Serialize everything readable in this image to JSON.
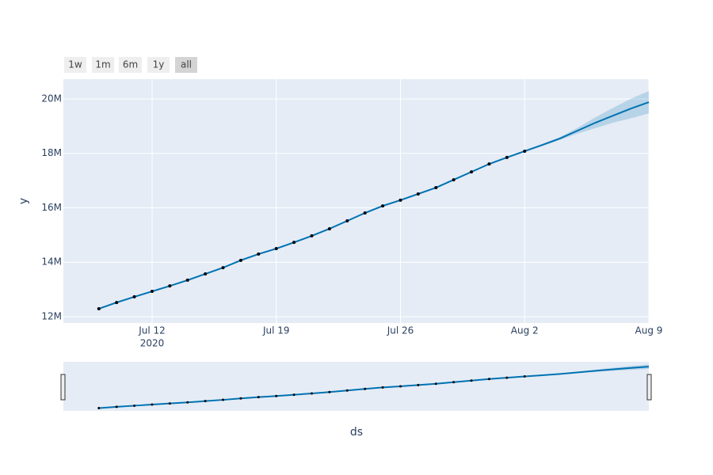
{
  "chart_data": {
    "type": "line",
    "x": [
      "2020-07-09",
      "2020-07-10",
      "2020-07-11",
      "2020-07-12",
      "2020-07-13",
      "2020-07-14",
      "2020-07-15",
      "2020-07-16",
      "2020-07-17",
      "2020-07-18",
      "2020-07-19",
      "2020-07-20",
      "2020-07-21",
      "2020-07-22",
      "2020-07-23",
      "2020-07-24",
      "2020-07-25",
      "2020-07-26",
      "2020-07-27",
      "2020-07-28",
      "2020-07-29",
      "2020-07-30",
      "2020-07-31",
      "2020-08-01",
      "2020-08-02",
      "2020-08-03",
      "2020-08-04",
      "2020-08-05",
      "2020-08-06",
      "2020-08-07",
      "2020-08-08",
      "2020-08-09"
    ],
    "values": [
      12290000,
      12520000,
      12730000,
      12930000,
      13130000,
      13340000,
      13570000,
      13800000,
      14070000,
      14300000,
      14500000,
      14730000,
      14970000,
      15230000,
      15520000,
      15810000,
      16070000,
      16280000,
      16510000,
      16740000,
      17030000,
      17320000,
      17610000,
      17850000,
      18080000,
      null,
      null,
      null,
      null,
      null,
      null,
      null
    ],
    "marker_color": "#000000",
    "forecast": {
      "color": "#0072B2",
      "band_color": "rgba(0,114,178,0.2)",
      "values": [
        12290000,
        12520000,
        12730000,
        12930000,
        13130000,
        13340000,
        13570000,
        13800000,
        14070000,
        14300000,
        14500000,
        14730000,
        14970000,
        15230000,
        15520000,
        15810000,
        16070000,
        16280000,
        16510000,
        16740000,
        17030000,
        17320000,
        17610000,
        17850000,
        18080000,
        18310000,
        18550000,
        18840000,
        19130000,
        19390000,
        19650000,
        19880000
      ],
      "upper": [
        12320000,
        12550000,
        12760000,
        12960000,
        13160000,
        13370000,
        13600000,
        13830000,
        14100000,
        14330000,
        14530000,
        14760000,
        15000000,
        15260000,
        15550000,
        15840000,
        16100000,
        16310000,
        16540000,
        16770000,
        17060000,
        17350000,
        17640000,
        17880000,
        18110000,
        18350000,
        18600000,
        18950000,
        19330000,
        19680000,
        20010000,
        20290000
      ],
      "lower": [
        12260000,
        12490000,
        12700000,
        12900000,
        13100000,
        13310000,
        13540000,
        13770000,
        14040000,
        14270000,
        14470000,
        14700000,
        14940000,
        15200000,
        15490000,
        15780000,
        16040000,
        16250000,
        16480000,
        16710000,
        17000000,
        17290000,
        17580000,
        17820000,
        18050000,
        18270000,
        18490000,
        18730000,
        18930000,
        19130000,
        19290000,
        19470000
      ]
    },
    "xlabel": "ds",
    "ylabel": "y",
    "xlim": [
      "2020-07-07",
      "2020-08-09"
    ],
    "xticks": [
      {
        "value": "2020-07-12",
        "label": "Jul 12"
      },
      {
        "value": "2020-07-19",
        "label": "Jul 19"
      },
      {
        "value": "2020-07-26",
        "label": "Jul 26"
      },
      {
        "value": "2020-08-02",
        "label": "Aug 2"
      },
      {
        "value": "2020-08-09",
        "label": "Aug 9"
      }
    ],
    "x_tick_year": "2020",
    "ylim": [
      11767000,
      20727000
    ],
    "yticks": [
      {
        "value": 12000000,
        "label": "12M"
      },
      {
        "value": 14000000,
        "label": "14M"
      },
      {
        "value": 16000000,
        "label": "16M"
      },
      {
        "value": 18000000,
        "label": "18M"
      },
      {
        "value": 20000000,
        "label": "20M"
      }
    ],
    "grid": true,
    "range_buttons": [
      "1w",
      "1m",
      "6m",
      "1y",
      "all"
    ],
    "active_button": "all"
  }
}
